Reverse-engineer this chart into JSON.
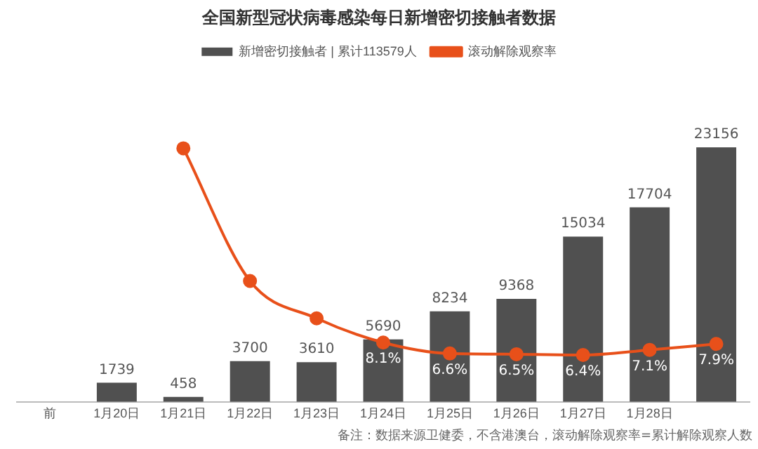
{
  "chart_data": {
    "type": "bar",
    "title": "全国新型冠状病毒感染每日新增密切接触者数据",
    "categories": [
      "前",
      "1月20日",
      "1月21日",
      "1月22日",
      "1月23日",
      "1月24日",
      "1月25日",
      "1月26日",
      "1月27日",
      "1月28日",
      null
    ],
    "series": [
      {
        "name": "新增密切接触者 | 累计113579人",
        "color": "#505050",
        "values": [
          null,
          1739,
          458,
          3700,
          3610,
          5690,
          8234,
          9368,
          15034,
          17704,
          23156
        ],
        "value_labels": [
          null,
          "1739",
          "458",
          "3700",
          "3610",
          "5690",
          "8234",
          "9368",
          "15034",
          "17704",
          "23156"
        ]
      },
      {
        "name": "滚动解除观察率",
        "type": "line",
        "axis": "y2",
        "color": "#e8501a",
        "values": [
          null,
          null,
          34.6,
          16.5,
          11.4,
          8.1,
          6.6,
          6.5,
          6.4,
          7.1,
          7.9
        ],
        "value_labels": [
          null,
          null,
          null,
          null,
          null,
          "8.1%",
          "6.6%",
          "6.5%",
          "6.4%",
          "7.1%",
          "7.9%"
        ]
      }
    ],
    "tick_labels": "x",
    "grid": false,
    "legend": "top",
    "marker": "circle",
    "annotations": [
      "备注：数据来源卫健委，不含港澳台，滚动解除观察率=累计解除观察人数"
    ]
  }
}
